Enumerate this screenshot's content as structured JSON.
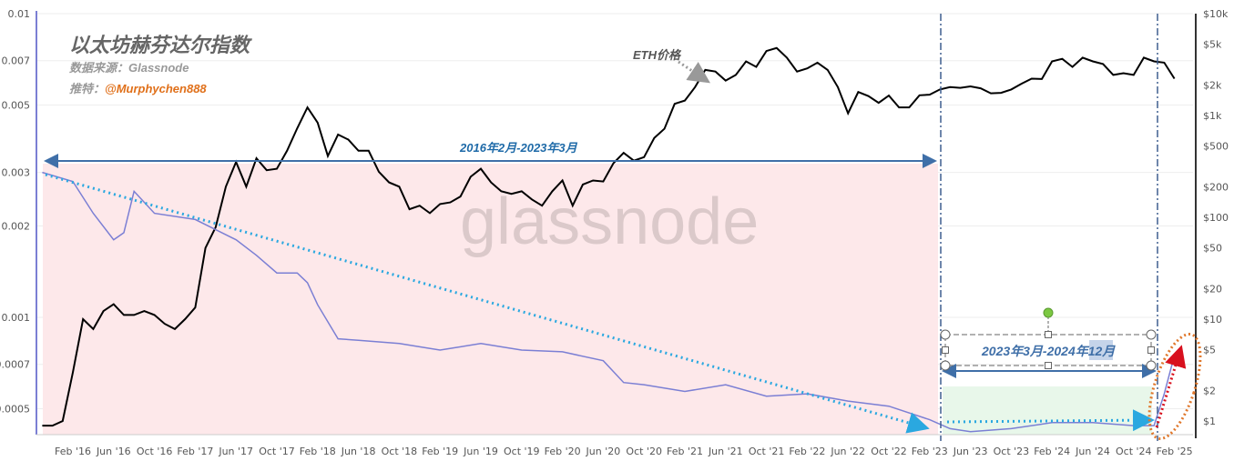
{
  "header": {
    "title": "以太坊赫芬达尔指数",
    "source": "数据来源：Glassnode",
    "author_prefix": "推特：",
    "author_handle": "@Murphychen888"
  },
  "watermark": "glassnode",
  "colors": {
    "price": "#000000",
    "index": "#7b7fd4",
    "pink_band": "#fde8ea",
    "green_band": "#e8f7ea",
    "arrow": "#2aa8e0",
    "range_arrow": "#3f6fa8",
    "highlight": "#e0772a",
    "red_arrow": "#d8101e"
  },
  "chart_data": {
    "type": "line",
    "title": "以太坊赫芬达尔指数",
    "left_axis": {
      "scale": "log",
      "ticks": [
        "0.01",
        "0.007",
        "0.005",
        "0.003",
        "0.002",
        "0.001",
        "0.0007",
        "0.0005"
      ],
      "range": [
        0.00041,
        0.01
      ]
    },
    "right_axis": {
      "scale": "log",
      "ticks": [
        "$10k",
        "$5k",
        "$2k",
        "$1k",
        "$500",
        "$200",
        "$100",
        "$50",
        "$20",
        "$10",
        "$5",
        "$2",
        "$1"
      ],
      "range": [
        0.73,
        10000
      ]
    },
    "x_ticks": [
      "Feb '16",
      "Jun '16",
      "Oct '16",
      "Feb '17",
      "Jun '17",
      "Oct '17",
      "Feb '18",
      "Jun '18",
      "Oct '18",
      "Feb '19",
      "Jun '19",
      "Oct '19",
      "Feb '20",
      "Jun '20",
      "Oct '20",
      "Feb '21",
      "Jun '21",
      "Oct '21",
      "Feb '22",
      "Jun '22",
      "Oct '22",
      "Feb '23",
      "Jun '23",
      "Oct '23",
      "Feb '24",
      "Jun '24",
      "Oct '24",
      "Feb '25"
    ],
    "grid": true,
    "series": [
      {
        "name": "ETH价格",
        "axis": "right",
        "points": [
          [
            "2015-11",
            0.9
          ],
          [
            "2015-12",
            0.9
          ],
          [
            "2016-01",
            1.0
          ],
          [
            "2016-02",
            3
          ],
          [
            "2016-03",
            10
          ],
          [
            "2016-04",
            8
          ],
          [
            "2016-05",
            12
          ],
          [
            "2016-06",
            14
          ],
          [
            "2016-07",
            11
          ],
          [
            "2016-08",
            11
          ],
          [
            "2016-09",
            12
          ],
          [
            "2016-10",
            11
          ],
          [
            "2016-11",
            9
          ],
          [
            "2016-12",
            8
          ],
          [
            "2017-01",
            10
          ],
          [
            "2017-02",
            13
          ],
          [
            "2017-03",
            50
          ],
          [
            "2017-04",
            80
          ],
          [
            "2017-05",
            200
          ],
          [
            "2017-06",
            350
          ],
          [
            "2017-07",
            200
          ],
          [
            "2017-08",
            380
          ],
          [
            "2017-09",
            290
          ],
          [
            "2017-10",
            300
          ],
          [
            "2017-11",
            450
          ],
          [
            "2017-12",
            750
          ],
          [
            "2018-01",
            1200
          ],
          [
            "2018-02",
            850
          ],
          [
            "2018-03",
            400
          ],
          [
            "2018-04",
            650
          ],
          [
            "2018-05",
            580
          ],
          [
            "2018-06",
            450
          ],
          [
            "2018-07",
            450
          ],
          [
            "2018-08",
            280
          ],
          [
            "2018-09",
            220
          ],
          [
            "2018-10",
            200
          ],
          [
            "2018-11",
            120
          ],
          [
            "2018-12",
            130
          ],
          [
            "2019-01",
            110
          ],
          [
            "2019-02",
            135
          ],
          [
            "2019-03",
            140
          ],
          [
            "2019-04",
            160
          ],
          [
            "2019-05",
            250
          ],
          [
            "2019-06",
            300
          ],
          [
            "2019-07",
            220
          ],
          [
            "2019-08",
            180
          ],
          [
            "2019-09",
            170
          ],
          [
            "2019-10",
            180
          ],
          [
            "2019-11",
            150
          ],
          [
            "2019-12",
            130
          ],
          [
            "2020-01",
            180
          ],
          [
            "2020-02",
            230
          ],
          [
            "2020-03",
            130
          ],
          [
            "2020-04",
            210
          ],
          [
            "2020-05",
            230
          ],
          [
            "2020-06",
            225
          ],
          [
            "2020-07",
            340
          ],
          [
            "2020-08",
            430
          ],
          [
            "2020-09",
            360
          ],
          [
            "2020-10",
            390
          ],
          [
            "2020-11",
            600
          ],
          [
            "2020-12",
            740
          ],
          [
            "2021-01",
            1300
          ],
          [
            "2021-02",
            1400
          ],
          [
            "2021-03",
            1900
          ],
          [
            "2021-04",
            2800
          ],
          [
            "2021-05",
            2700
          ],
          [
            "2021-06",
            2200
          ],
          [
            "2021-07",
            2500
          ],
          [
            "2021-08",
            3400
          ],
          [
            "2021-09",
            3000
          ],
          [
            "2021-10",
            4300
          ],
          [
            "2021-11",
            4600
          ],
          [
            "2021-12",
            3700
          ],
          [
            "2022-01",
            2700
          ],
          [
            "2022-02",
            2900
          ],
          [
            "2022-03",
            3300
          ],
          [
            "2022-04",
            2800
          ],
          [
            "2022-05",
            1900
          ],
          [
            "2022-06",
            1050
          ],
          [
            "2022-07",
            1700
          ],
          [
            "2022-08",
            1550
          ],
          [
            "2022-09",
            1330
          ],
          [
            "2022-10",
            1570
          ],
          [
            "2022-11",
            1200
          ],
          [
            "2022-12",
            1200
          ],
          [
            "2023-01",
            1580
          ],
          [
            "2023-02",
            1600
          ],
          [
            "2023-03",
            1800
          ],
          [
            "2023-04",
            1900
          ],
          [
            "2023-05",
            1870
          ],
          [
            "2023-06",
            1930
          ],
          [
            "2023-07",
            1850
          ],
          [
            "2023-08",
            1650
          ],
          [
            "2023-09",
            1670
          ],
          [
            "2023-10",
            1800
          ],
          [
            "2023-11",
            2050
          ],
          [
            "2023-12",
            2300
          ],
          [
            "2024-01",
            2280
          ],
          [
            "2024-02",
            3400
          ],
          [
            "2024-03",
            3600
          ],
          [
            "2024-04",
            3000
          ],
          [
            "2024-05",
            3700
          ],
          [
            "2024-06",
            3400
          ],
          [
            "2024-07",
            3200
          ],
          [
            "2024-08",
            2500
          ],
          [
            "2024-09",
            2600
          ],
          [
            "2024-10",
            2500
          ],
          [
            "2024-11",
            3700
          ],
          [
            "2024-12",
            3400
          ],
          [
            "2025-01",
            3300
          ],
          [
            "2025-02",
            2300
          ]
        ]
      },
      {
        "axis": "left",
        "points": [
          [
            "2015-11",
            0.003
          ],
          [
            "2016-02",
            0.0028
          ],
          [
            "2016-04",
            0.0022
          ],
          [
            "2016-06",
            0.0018
          ],
          [
            "2016-07",
            0.0019
          ],
          [
            "2016-08",
            0.0026
          ],
          [
            "2016-10",
            0.0022
          ],
          [
            "2017-02",
            0.0021
          ],
          [
            "2017-06",
            0.0018
          ],
          [
            "2017-08",
            0.0016
          ],
          [
            "2017-10",
            0.0014
          ],
          [
            "2017-12",
            0.0014
          ],
          [
            "2018-01",
            0.0013
          ],
          [
            "2018-02",
            0.0011
          ],
          [
            "2018-04",
            0.00085
          ],
          [
            "2018-06",
            0.00084
          ],
          [
            "2018-10",
            0.00082
          ],
          [
            "2019-02",
            0.00078
          ],
          [
            "2019-06",
            0.00082
          ],
          [
            "2019-10",
            0.00078
          ],
          [
            "2020-02",
            0.00077
          ],
          [
            "2020-06",
            0.00072
          ],
          [
            "2020-08",
            0.00061
          ],
          [
            "2020-10",
            0.0006
          ],
          [
            "2021-02",
            0.00057
          ],
          [
            "2021-06",
            0.0006
          ],
          [
            "2021-10",
            0.00055
          ],
          [
            "2022-02",
            0.00056
          ],
          [
            "2022-06",
            0.00053
          ],
          [
            "2022-10",
            0.00051
          ],
          [
            "2023-02",
            0.00046
          ],
          [
            "2023-04",
            0.00043
          ],
          [
            "2023-06",
            0.00042
          ],
          [
            "2023-10",
            0.00043
          ],
          [
            "2024-02",
            0.00045
          ],
          [
            "2024-06",
            0.00045
          ],
          [
            "2024-10",
            0.00044
          ],
          [
            "2024-12",
            0.00044
          ],
          [
            "2025-01",
            0.00056
          ],
          [
            "2025-02",
            0.00075
          ]
        ]
      }
    ],
    "annotations": {
      "price_label": "ETH价格",
      "range1": "2016年2月-2023年3月",
      "range2": "2023年3月-2024年12月"
    }
  }
}
